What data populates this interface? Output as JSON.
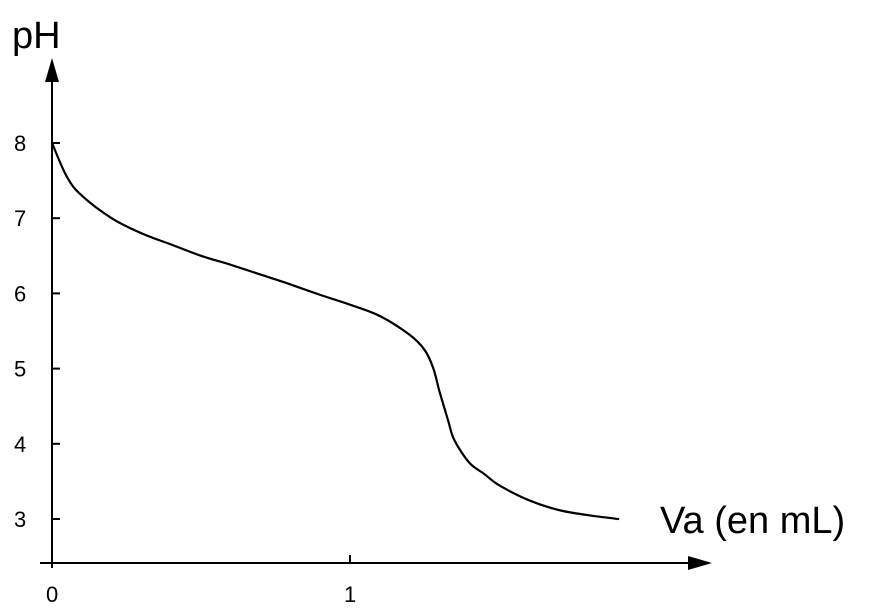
{
  "chart_data": {
    "type": "line",
    "title": "",
    "xlabel": "Va (en mL)",
    "ylabel": "pH",
    "xlim": [
      0,
      1.95
    ],
    "ylim": [
      2.7,
      8.6
    ],
    "x_ticks": [
      0,
      1
    ],
    "x_tick_labels": [
      "0",
      "1"
    ],
    "y_ticks": [
      3,
      4,
      5,
      6,
      7,
      8
    ],
    "y_tick_labels": [
      "3",
      "4",
      "5",
      "6",
      "7",
      "8"
    ],
    "grid": false,
    "legend": "none",
    "line_color": "#000000",
    "series": [
      {
        "x": [
          0,
          0.05,
          0.1,
          0.2,
          0.3,
          0.4,
          0.5,
          0.6,
          0.7,
          0.8,
          0.9,
          1.0,
          1.1,
          1.2,
          1.25,
          1.28,
          1.3,
          1.33,
          1.35,
          1.4,
          1.45,
          1.5,
          1.6,
          1.7,
          1.8,
          1.9
        ],
        "y": [
          8.0,
          7.55,
          7.3,
          7.0,
          6.8,
          6.65,
          6.5,
          6.38,
          6.25,
          6.12,
          5.98,
          5.85,
          5.7,
          5.45,
          5.25,
          5.0,
          4.7,
          4.3,
          4.05,
          3.75,
          3.6,
          3.45,
          3.25,
          3.12,
          3.05,
          3.0
        ]
      }
    ]
  }
}
